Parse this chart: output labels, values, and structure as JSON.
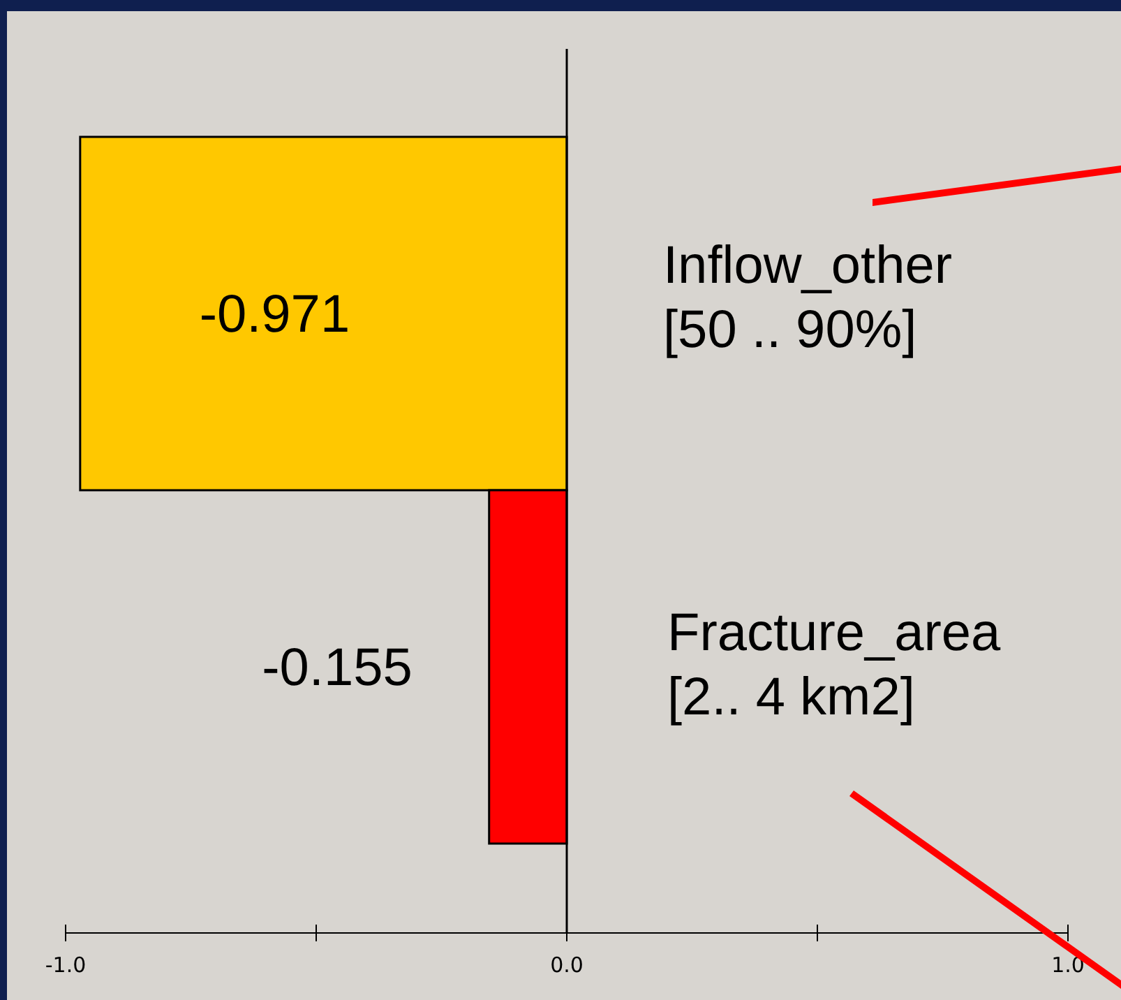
{
  "chart_data": {
    "type": "bar",
    "orientation": "horizontal",
    "categories": [
      "Inflow_other\n[50 .. 90%]",
      "Fracture_area\n[2.. 4 km2]"
    ],
    "values": [
      -0.971,
      -0.155
    ],
    "colors": [
      "#ffc800",
      "#ff0000"
    ],
    "xlim": [
      -1.0,
      1.0
    ],
    "xticks": [
      {
        "value": -1.0,
        "label": "-1.0"
      },
      {
        "value": -0.5,
        "label": null
      },
      {
        "value": 0.0,
        "label": "0.0"
      },
      {
        "value": 0.5,
        "label": null
      },
      {
        "value": 1.0,
        "label": "1.0"
      }
    ],
    "data_labels": true
  }
}
